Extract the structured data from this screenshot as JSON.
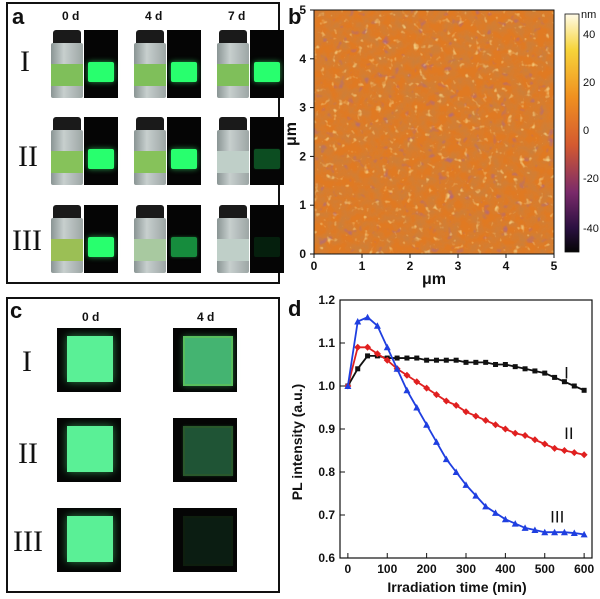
{
  "panel_a": {
    "letter": "a",
    "day_labels": [
      "0 d",
      "4 d",
      "7 d"
    ],
    "rows": [
      "I",
      "II",
      "III"
    ]
  },
  "panel_b": {
    "letter": "b",
    "xlabel": "μm",
    "ylabel": "μm",
    "x_ticks": [
      "0",
      "1",
      "2",
      "3",
      "4",
      "5"
    ],
    "y_ticks": [
      "0",
      "1",
      "2",
      "3",
      "4",
      "5"
    ],
    "colorbar_unit": "nm",
    "colorbar_ticks": [
      "40",
      "20",
      "0",
      "-20",
      "-40"
    ]
  },
  "panel_c": {
    "letter": "c",
    "day_labels": [
      "0 d",
      "4 d"
    ],
    "rows": [
      "I",
      "II",
      "III"
    ]
  },
  "chart_data": {
    "type": "line",
    "panel_letter": "d",
    "xlabel": "Irradiation time (min)",
    "ylabel": "PL intensity (a.u.)",
    "xlim": [
      -20,
      620
    ],
    "ylim": [
      0.6,
      1.2
    ],
    "x_ticks": [
      "0",
      "100",
      "200",
      "300",
      "400",
      "500",
      "600"
    ],
    "y_ticks": [
      "0.6",
      "0.7",
      "0.8",
      "0.9",
      "1.0",
      "1.1",
      "1.2"
    ],
    "series": [
      {
        "name": "I",
        "color": "#111111",
        "marker": "square",
        "x": [
          0,
          25,
          50,
          75,
          100,
          125,
          150,
          175,
          200,
          225,
          250,
          275,
          300,
          325,
          350,
          375,
          400,
          425,
          450,
          475,
          500,
          525,
          550,
          575,
          600
        ],
        "values": [
          1.0,
          1.04,
          1.07,
          1.07,
          1.065,
          1.065,
          1.065,
          1.065,
          1.06,
          1.06,
          1.06,
          1.06,
          1.055,
          1.055,
          1.055,
          1.05,
          1.05,
          1.045,
          1.04,
          1.035,
          1.03,
          1.02,
          1.01,
          1.0,
          0.99
        ]
      },
      {
        "name": "II",
        "color": "#e02020",
        "marker": "diamond",
        "x": [
          0,
          25,
          50,
          75,
          100,
          125,
          150,
          175,
          200,
          225,
          250,
          275,
          300,
          325,
          350,
          375,
          400,
          425,
          450,
          475,
          500,
          525,
          550,
          575,
          600
        ],
        "values": [
          1.0,
          1.09,
          1.09,
          1.075,
          1.06,
          1.04,
          1.025,
          1.01,
          0.995,
          0.98,
          0.965,
          0.955,
          0.94,
          0.93,
          0.92,
          0.91,
          0.9,
          0.89,
          0.885,
          0.875,
          0.865,
          0.855,
          0.85,
          0.845,
          0.84
        ]
      },
      {
        "name": "III",
        "color": "#1f3fe0",
        "marker": "triangle",
        "x": [
          0,
          25,
          50,
          75,
          100,
          125,
          150,
          175,
          200,
          225,
          250,
          275,
          300,
          325,
          350,
          375,
          400,
          425,
          450,
          475,
          500,
          525,
          550,
          575,
          600
        ],
        "values": [
          1.0,
          1.15,
          1.16,
          1.14,
          1.09,
          1.04,
          0.99,
          0.95,
          0.91,
          0.87,
          0.83,
          0.8,
          0.77,
          0.745,
          0.72,
          0.705,
          0.69,
          0.68,
          0.67,
          0.665,
          0.66,
          0.66,
          0.66,
          0.658,
          0.655
        ]
      }
    ]
  },
  "colors": {
    "green_bright": "#4dff8a",
    "green_dim": "#1c5a2a",
    "green_faint": "#0d2612"
  }
}
